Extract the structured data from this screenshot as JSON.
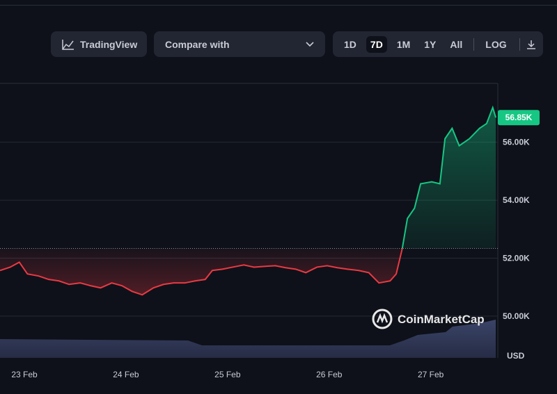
{
  "toolbar": {
    "tradingview": "TradingView",
    "compare": "Compare with",
    "ranges": [
      "1D",
      "7D",
      "1M",
      "1Y",
      "All"
    ],
    "log": "LOG"
  },
  "watermark": "CoinMarketCap",
  "chart_data": {
    "type": "line",
    "x": [
      22.76,
      22.86,
      22.95,
      23.03,
      23.14,
      23.24,
      23.34,
      23.44,
      23.55,
      23.65,
      23.75,
      23.86,
      23.96,
      24.06,
      24.16,
      24.27,
      24.37,
      24.47,
      24.58,
      24.68,
      24.78,
      24.85,
      24.95,
      25.05,
      25.16,
      25.26,
      25.36,
      25.47,
      25.57,
      25.67,
      25.77,
      25.88,
      25.98,
      26.08,
      26.18,
      26.29,
      26.39,
      26.49,
      26.6,
      26.66,
      26.72,
      26.77,
      26.84,
      26.9,
      27.01,
      27.09,
      27.14,
      27.21,
      27.28,
      27.38,
      27.48,
      27.55,
      27.61,
      27.64
    ],
    "values": [
      51575,
      51690,
      51860,
      51455,
      51385,
      51265,
      51215,
      51095,
      51145,
      51050,
      50975,
      51145,
      51050,
      50855,
      50735,
      50975,
      51095,
      51145,
      51145,
      51215,
      51265,
      51575,
      51620,
      51690,
      51765,
      51690,
      51715,
      51740,
      51670,
      51620,
      51500,
      51690,
      51740,
      51670,
      51620,
      51575,
      51500,
      51145,
      51215,
      51455,
      52340,
      53370,
      53725,
      54565,
      54635,
      54565,
      56120,
      56480,
      55880,
      56120,
      56480,
      56645,
      57195,
      56850
    ],
    "baseline": 52335,
    "last_price": {
      "value": 56850,
      "label": "56.85K"
    },
    "up_color": "#16c784",
    "down_color": "#ea3943",
    "xlim": [
      22.76,
      27.66
    ],
    "xticks": [
      {
        "value": 23,
        "label": "23 Feb"
      },
      {
        "value": 24,
        "label": "24 Feb"
      },
      {
        "value": 25,
        "label": "25 Feb"
      },
      {
        "value": 26,
        "label": "26 Feb"
      },
      {
        "value": 27,
        "label": "27 Feb"
      }
    ],
    "ylim": [
      48560,
      58030
    ],
    "yticks": [
      {
        "value": 50000,
        "label": "50.00K"
      },
      {
        "value": 52000,
        "label": "52.00K"
      },
      {
        "value": 54000,
        "label": "54.00K"
      },
      {
        "value": 56000,
        "label": "56.00K"
      }
    ],
    "y_unit": "USD",
    "grid": true
  }
}
